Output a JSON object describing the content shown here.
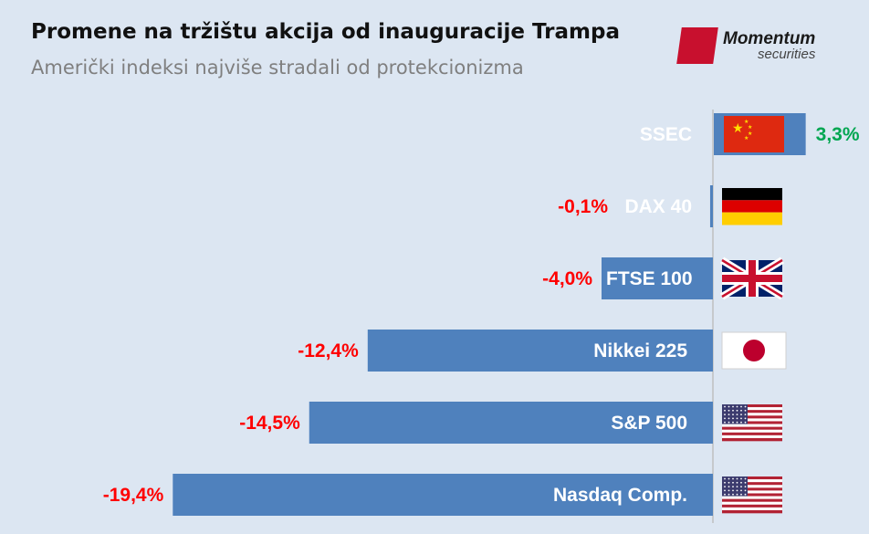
{
  "header": {
    "title": "Promene na tržištu akcija od inauguracije Trampa",
    "subtitle": "Američki indeksi najviše stradali od protekcionizma"
  },
  "logo": {
    "name": "Momentum",
    "sub": "securities",
    "color": "#c8102e"
  },
  "colors": {
    "bar": "#4f81bd",
    "positive": "#00a651",
    "negative": "#ff0000",
    "background": "#dce6f2"
  },
  "chart_data": {
    "type": "bar",
    "orientation": "horizontal",
    "title": "Promene na tržištu akcija od inauguracije Trampa",
    "subtitle": "Američki indeksi najviše stradali od protekcionizma",
    "categories": [
      "SSEC",
      "DAX 40",
      "FTSE 100",
      "Nikkei 225",
      "S&P 500",
      "Nasdaq Comp."
    ],
    "values": [
      3.3,
      -0.1,
      -4.0,
      -12.4,
      -14.5,
      -19.4
    ],
    "value_labels": [
      "3,3%",
      "-0,1%",
      "-4,0%",
      "-12,4%",
      "-14,5%",
      "-19,4%"
    ],
    "flags": [
      "china-flag-icon",
      "germany-flag-icon",
      "uk-flag-icon",
      "japan-flag-icon",
      "usa-flag-icon",
      "usa-flag-icon"
    ],
    "unit": "%",
    "xlim": [
      -21,
      4
    ]
  }
}
